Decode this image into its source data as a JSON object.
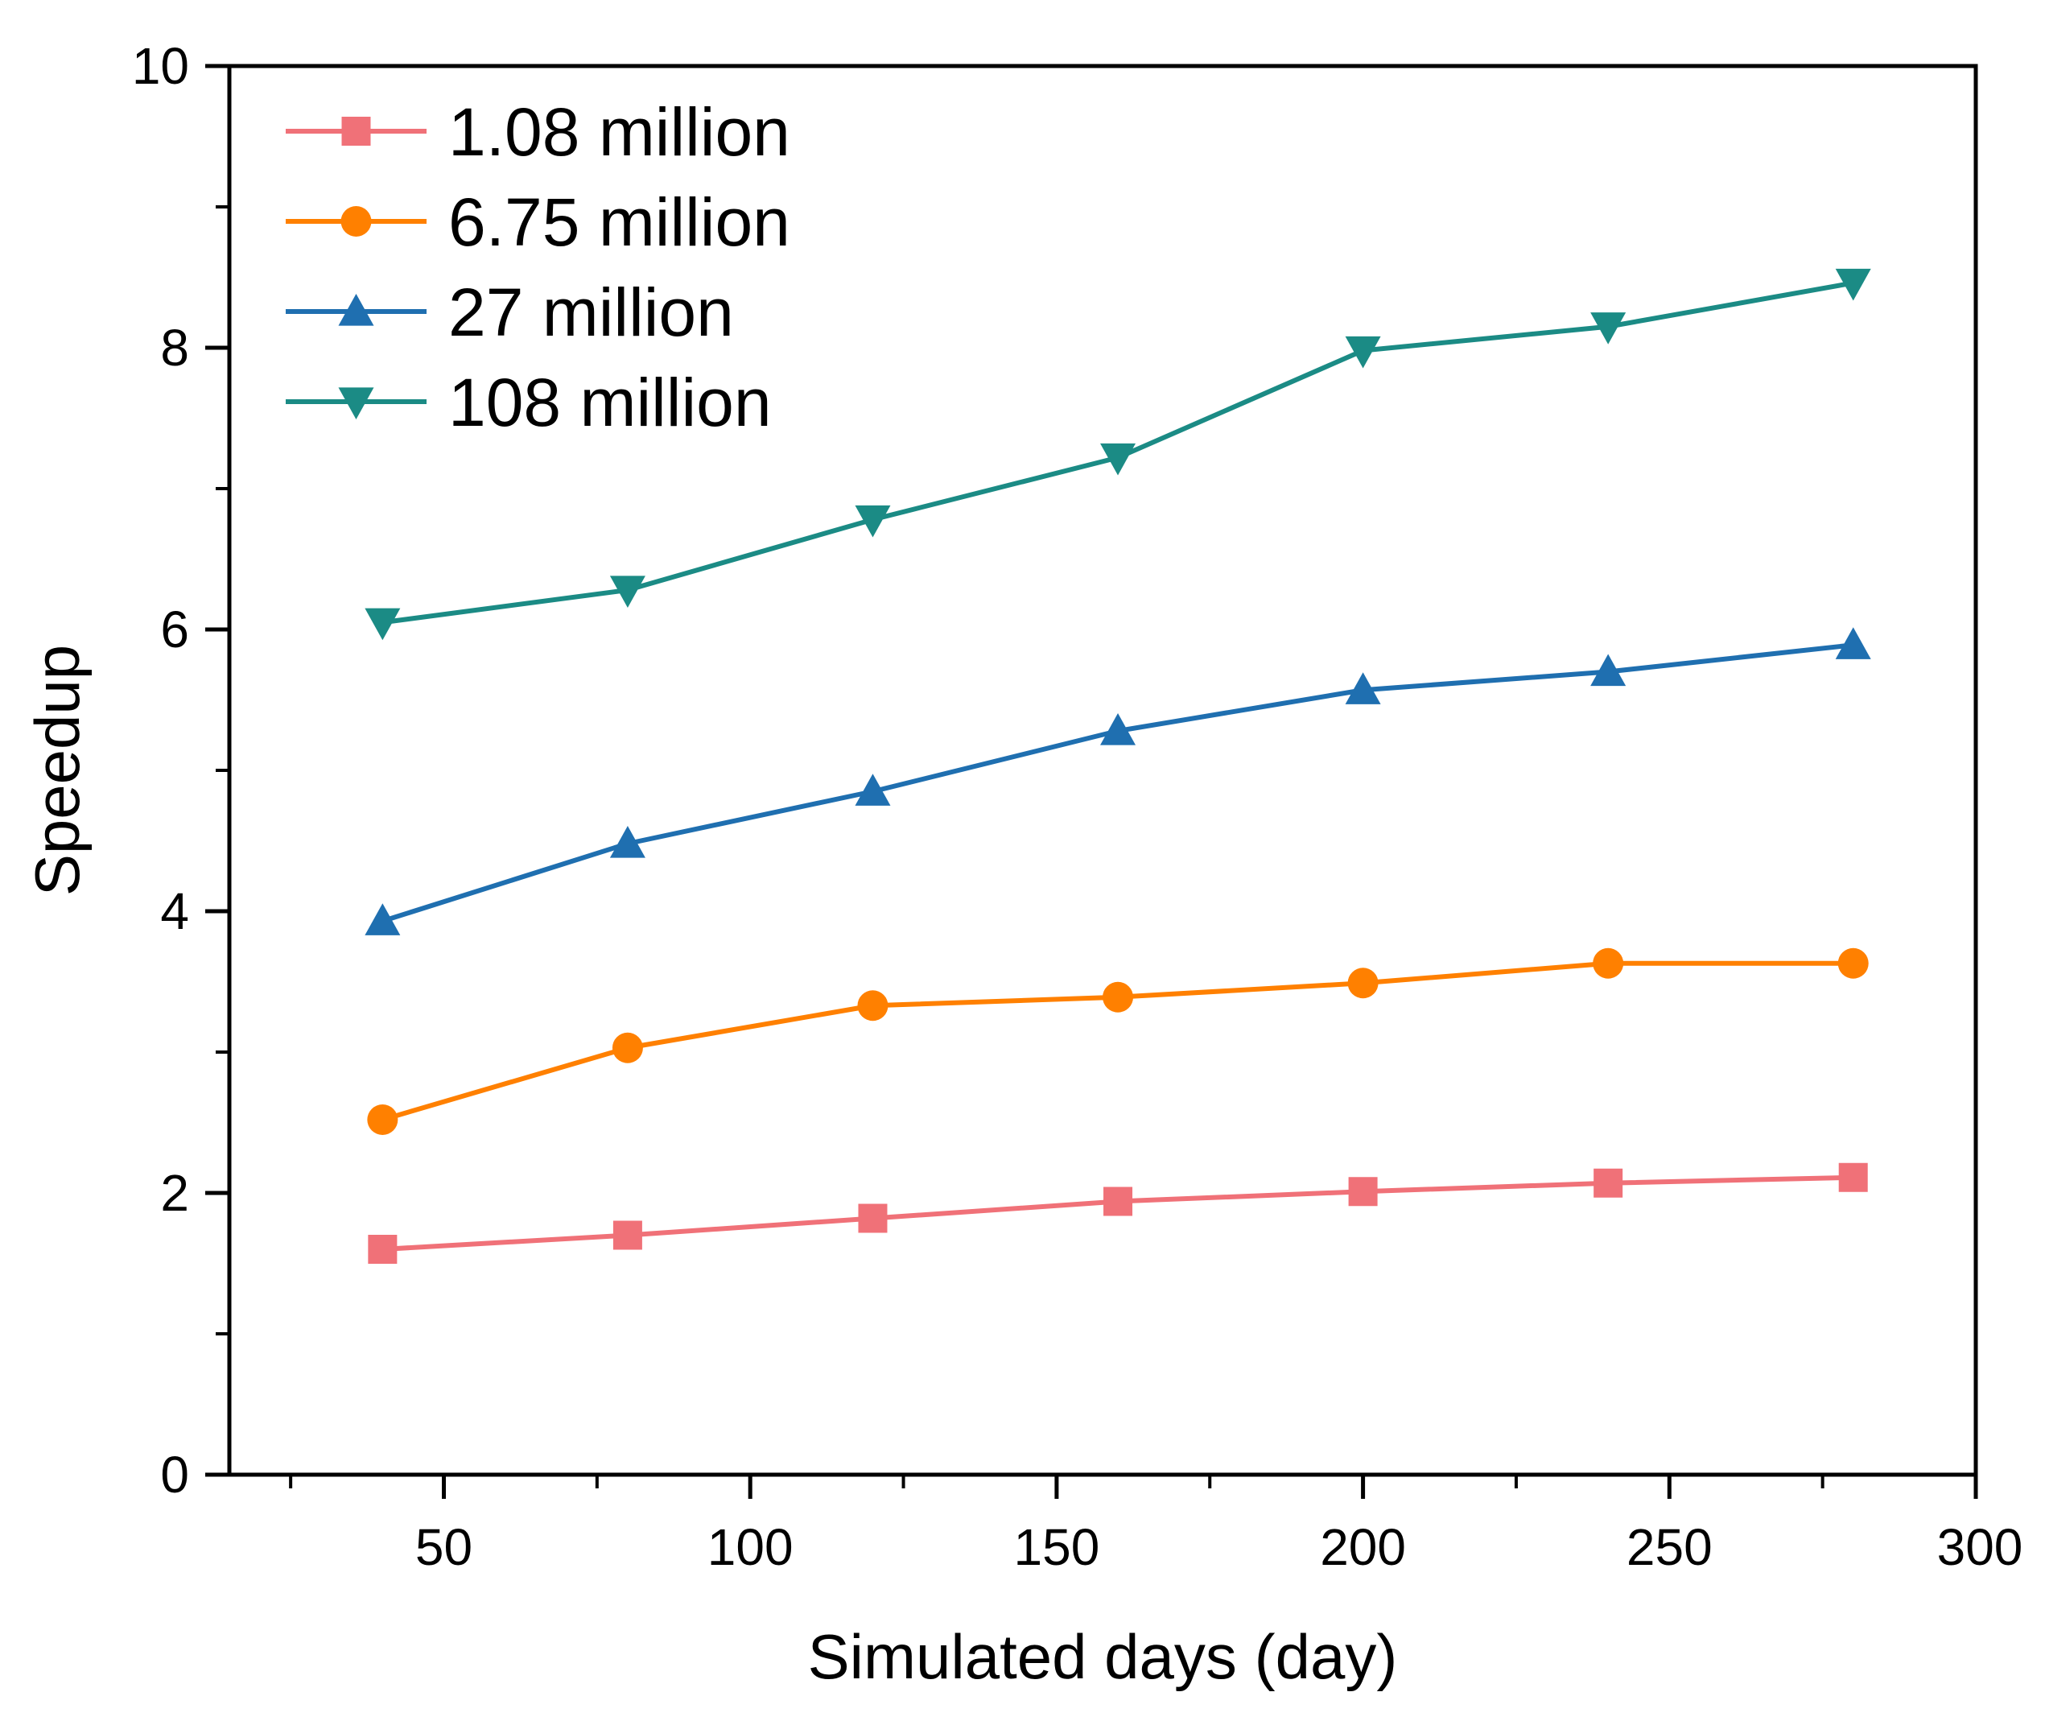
{
  "chart_data": {
    "type": "line",
    "title": "",
    "xlabel": "Simulated days (day)",
    "ylabel": "Speedup",
    "xlim": [
      15,
      300
    ],
    "ylim": [
      0,
      10
    ],
    "x_ticks": [
      50,
      100,
      150,
      200,
      250,
      300
    ],
    "y_ticks": [
      0,
      2,
      4,
      6,
      8,
      10
    ],
    "grid": false,
    "legend_position": "top-left",
    "x": [
      40,
      80,
      120,
      160,
      200,
      240,
      280
    ],
    "series": [
      {
        "name": "1.08 million",
        "marker": "square",
        "color": "#f07178",
        "values": [
          1.6,
          1.7,
          1.82,
          1.94,
          2.01,
          2.07,
          2.11
        ]
      },
      {
        "name": "6.75 million",
        "marker": "circle",
        "color": "#ff8000",
        "values": [
          2.52,
          3.03,
          3.33,
          3.39,
          3.49,
          3.63,
          3.63
        ]
      },
      {
        "name": "27 million",
        "marker": "triangle-up",
        "color": "#1f6fb0",
        "values": [
          3.93,
          4.48,
          4.85,
          5.28,
          5.57,
          5.7,
          5.89
        ]
      },
      {
        "name": "108 million",
        "marker": "triangle-down",
        "color": "#1b8b85",
        "values": [
          6.05,
          6.28,
          6.78,
          7.22,
          7.98,
          8.15,
          8.46
        ]
      }
    ]
  }
}
